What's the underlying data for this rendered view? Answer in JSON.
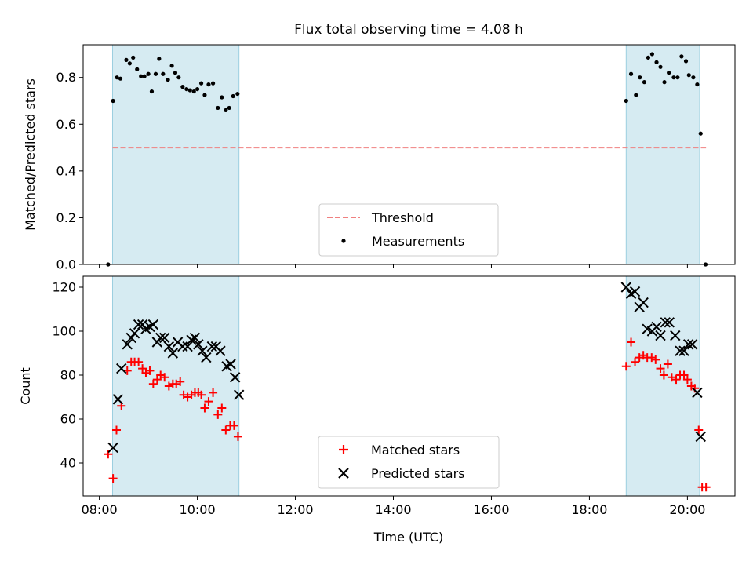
{
  "chart_data": {
    "type": "scatter",
    "title": "Flux total observing time = 4.08 h",
    "xlabel": "Time (UTC)",
    "x_tick_labels": [
      "08:00",
      "10:00",
      "12:00",
      "14:00",
      "16:00",
      "18:00",
      "20:00"
    ],
    "x_ticks_hours": [
      8,
      10,
      12,
      14,
      16,
      18,
      20
    ],
    "xlim_hours": [
      7.67,
      20.97
    ],
    "shaded_intervals_hours": [
      [
        8.27,
        10.85
      ],
      [
        18.75,
        20.25
      ]
    ],
    "shade_color": "#add8e6",
    "panels": [
      {
        "id": "ratio",
        "ylabel": "Matched/Predicted stars",
        "ylim": [
          0,
          0.94
        ],
        "yticks": [
          0.0,
          0.2,
          0.4,
          0.6,
          0.8
        ],
        "ytick_labels": [
          "0.0",
          "0.2",
          "0.4",
          "0.6",
          "0.8"
        ],
        "legend_position": "lower-center",
        "threshold": {
          "name": "Threshold",
          "value": 0.5,
          "x_range": [
            8.27,
            20.38
          ],
          "color": "#f08080"
        },
        "series": [
          {
            "name": "Measurements",
            "marker": "dot",
            "color": "#000000",
            "points": [
              [
                8.18,
                0.0
              ],
              [
                8.28,
                0.7
              ],
              [
                8.36,
                0.8
              ],
              [
                8.43,
                0.795
              ],
              [
                8.55,
                0.875
              ],
              [
                8.62,
                0.86
              ],
              [
                8.69,
                0.885
              ],
              [
                8.77,
                0.835
              ],
              [
                8.85,
                0.805
              ],
              [
                8.92,
                0.805
              ],
              [
                9.0,
                0.815
              ],
              [
                9.07,
                0.74
              ],
              [
                9.15,
                0.815
              ],
              [
                9.22,
                0.88
              ],
              [
                9.3,
                0.815
              ],
              [
                9.4,
                0.79
              ],
              [
                9.48,
                0.85
              ],
              [
                9.55,
                0.82
              ],
              [
                9.62,
                0.8
              ],
              [
                9.7,
                0.76
              ],
              [
                9.78,
                0.75
              ],
              [
                9.85,
                0.745
              ],
              [
                9.93,
                0.74
              ],
              [
                10.0,
                0.75
              ],
              [
                10.08,
                0.775
              ],
              [
                10.15,
                0.725
              ],
              [
                10.23,
                0.77
              ],
              [
                10.32,
                0.775
              ],
              [
                10.42,
                0.67
              ],
              [
                10.5,
                0.715
              ],
              [
                10.58,
                0.66
              ],
              [
                10.65,
                0.67
              ],
              [
                10.73,
                0.72
              ],
              [
                10.82,
                0.73
              ],
              [
                18.75,
                0.7
              ],
              [
                18.85,
                0.815
              ],
              [
                18.95,
                0.725
              ],
              [
                19.03,
                0.8
              ],
              [
                19.12,
                0.78
              ],
              [
                19.2,
                0.885
              ],
              [
                19.28,
                0.9
              ],
              [
                19.37,
                0.865
              ],
              [
                19.45,
                0.845
              ],
              [
                19.53,
                0.78
              ],
              [
                19.62,
                0.82
              ],
              [
                19.72,
                0.8
              ],
              [
                19.8,
                0.8
              ],
              [
                19.88,
                0.89
              ],
              [
                19.97,
                0.87
              ],
              [
                20.03,
                0.81
              ],
              [
                20.12,
                0.8
              ],
              [
                20.2,
                0.77
              ],
              [
                20.27,
                0.56
              ],
              [
                20.37,
                0.0
              ]
            ]
          }
        ]
      },
      {
        "id": "counts",
        "ylabel": "Count",
        "ylim": [
          25,
          125
        ],
        "yticks": [
          40,
          60,
          80,
          100,
          120
        ],
        "ytick_labels": [
          "40",
          "60",
          "80",
          "100",
          "120"
        ],
        "legend_position": "lower-center",
        "series": [
          {
            "name": "Matched stars",
            "marker": "plus",
            "color": "#ff0000",
            "points": [
              [
                8.18,
                44
              ],
              [
                8.28,
                33
              ],
              [
                8.35,
                55
              ],
              [
                8.45,
                66
              ],
              [
                8.57,
                82
              ],
              [
                8.65,
                86
              ],
              [
                8.72,
                86
              ],
              [
                8.8,
                86
              ],
              [
                8.88,
                83
              ],
              [
                8.95,
                81
              ],
              [
                9.03,
                82
              ],
              [
                9.1,
                76
              ],
              [
                9.18,
                78
              ],
              [
                9.25,
                80
              ],
              [
                9.33,
                79
              ],
              [
                9.42,
                75
              ],
              [
                9.5,
                76
              ],
              [
                9.57,
                76
              ],
              [
                9.65,
                77
              ],
              [
                9.72,
                71
              ],
              [
                9.8,
                70
              ],
              [
                9.88,
                71
              ],
              [
                9.95,
                72
              ],
              [
                10.02,
                72
              ],
              [
                10.08,
                71
              ],
              [
                10.15,
                65
              ],
              [
                10.23,
                68
              ],
              [
                10.32,
                72
              ],
              [
                10.42,
                62
              ],
              [
                10.5,
                65
              ],
              [
                10.58,
                55
              ],
              [
                10.67,
                57
              ],
              [
                10.75,
                57
              ],
              [
                10.83,
                52
              ],
              [
                18.75,
                84
              ],
              [
                18.85,
                95
              ],
              [
                18.93,
                86
              ],
              [
                19.02,
                88
              ],
              [
                19.1,
                89
              ],
              [
                19.18,
                88
              ],
              [
                19.27,
                88
              ],
              [
                19.35,
                87
              ],
              [
                19.45,
                83
              ],
              [
                19.52,
                80
              ],
              [
                19.6,
                85
              ],
              [
                19.68,
                79
              ],
              [
                19.77,
                78
              ],
              [
                19.85,
                80
              ],
              [
                19.93,
                80
              ],
              [
                20.0,
                78
              ],
              [
                20.08,
                75
              ],
              [
                20.15,
                74
              ],
              [
                20.23,
                55
              ],
              [
                20.3,
                29
              ],
              [
                20.38,
                29
              ]
            ]
          },
          {
            "name": "Predicted stars",
            "marker": "cross",
            "color": "#000000",
            "points": [
              [
                8.28,
                47
              ],
              [
                8.38,
                69
              ],
              [
                8.45,
                83
              ],
              [
                8.57,
                94
              ],
              [
                8.65,
                97
              ],
              [
                8.72,
                99
              ],
              [
                8.8,
                103
              ],
              [
                8.88,
                103
              ],
              [
                8.95,
                101
              ],
              [
                9.03,
                102
              ],
              [
                9.1,
                103
              ],
              [
                9.18,
                95
              ],
              [
                9.25,
                97
              ],
              [
                9.33,
                97
              ],
              [
                9.42,
                93
              ],
              [
                9.5,
                90
              ],
              [
                9.6,
                95
              ],
              [
                9.7,
                93
              ],
              [
                9.8,
                93
              ],
              [
                9.88,
                96
              ],
              [
                9.95,
                97
              ],
              [
                10.02,
                94
              ],
              [
                10.1,
                91
              ],
              [
                10.18,
                88
              ],
              [
                10.3,
                93
              ],
              [
                10.38,
                93
              ],
              [
                10.47,
                91
              ],
              [
                10.6,
                84
              ],
              [
                10.68,
                85
              ],
              [
                10.77,
                79
              ],
              [
                10.85,
                71
              ],
              [
                18.75,
                120
              ],
              [
                18.85,
                117
              ],
              [
                18.93,
                118
              ],
              [
                19.02,
                111
              ],
              [
                19.1,
                113
              ],
              [
                19.18,
                101
              ],
              [
                19.28,
                100
              ],
              [
                19.37,
                102
              ],
              [
                19.45,
                98
              ],
              [
                19.55,
                104
              ],
              [
                19.63,
                104
              ],
              [
                19.75,
                98
              ],
              [
                19.85,
                91
              ],
              [
                19.93,
                91
              ],
              [
                20.02,
                94
              ],
              [
                20.1,
                94
              ],
              [
                20.2,
                72
              ],
              [
                20.27,
                52
              ]
            ]
          }
        ]
      }
    ]
  }
}
